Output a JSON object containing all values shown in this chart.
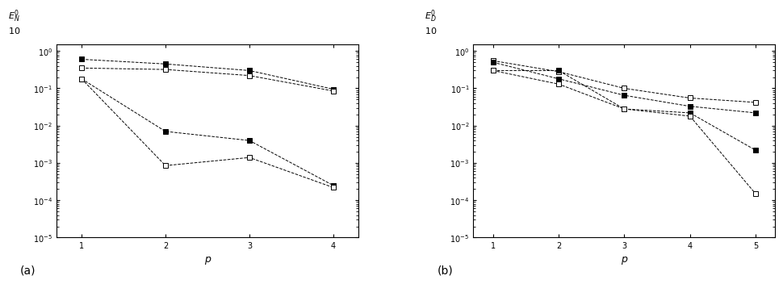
{
  "panel_a": {
    "xlabel": "p",
    "x": [
      1,
      2,
      3,
      4
    ],
    "ylim": [
      1e-05,
      1.5
    ],
    "xlim": [
      0.7,
      4.3
    ],
    "xticks": [
      1,
      2,
      3,
      4
    ],
    "lines": [
      {
        "y": [
          0.6,
          0.45,
          0.3,
          0.095
        ],
        "mfc": "black",
        "ms": 5
      },
      {
        "y": [
          0.35,
          0.32,
          0.22,
          0.085
        ],
        "mfc": "white",
        "ms": 5
      },
      {
        "y": [
          0.18,
          0.007,
          0.004,
          0.00025
        ],
        "mfc": "black",
        "ms": 4
      },
      {
        "y": [
          0.18,
          0.00085,
          0.0014,
          0.00022
        ],
        "mfc": "white",
        "ms": 4
      }
    ],
    "label": "(a)",
    "ylabel_text": "$E_N^0$\n$10$"
  },
  "panel_b": {
    "xlabel": "p",
    "x": [
      1,
      2,
      3,
      4,
      5
    ],
    "ylim": [
      1e-05,
      1.5
    ],
    "xlim": [
      0.7,
      5.3
    ],
    "xticks": [
      1,
      2,
      3,
      4,
      5
    ],
    "lines": [
      {
        "y": [
          0.55,
          0.28,
          0.1,
          0.055,
          0.042
        ],
        "mfc": "white",
        "ms": 5
      },
      {
        "y": [
          0.5,
          0.18,
          0.065,
          0.033,
          0.022
        ],
        "mfc": "black",
        "ms": 5
      },
      {
        "y": [
          0.3,
          0.3,
          0.028,
          0.022,
          0.0022
        ],
        "mfc": "black",
        "ms": 4
      },
      {
        "y": [
          0.3,
          0.13,
          0.028,
          0.018,
          0.00015
        ],
        "mfc": "white",
        "ms": 4
      }
    ],
    "label": "(b)",
    "ylabel_text": "$E_D^0$\n$10$"
  }
}
